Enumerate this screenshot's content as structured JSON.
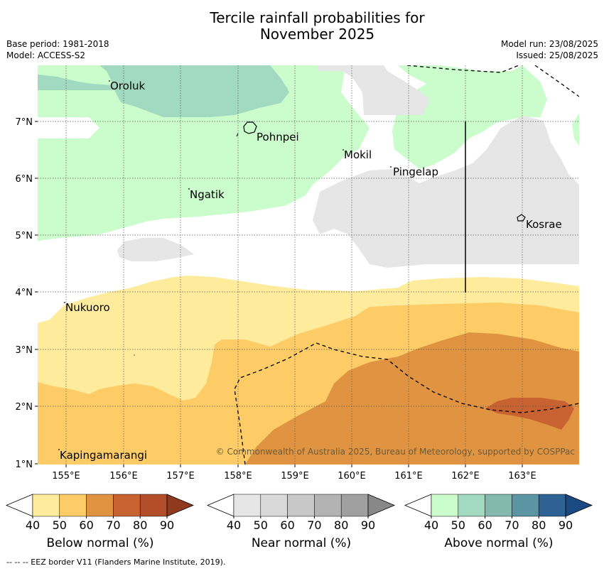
{
  "title_line1": "Tercile rainfall probabilities for",
  "title_line2": "November 2025",
  "base_period": "Base period: 1981-2018",
  "model": "Model: ACCESS-S2",
  "model_run": "Model run: 23/08/2025",
  "issued": "Issued: 25/08/2025",
  "copyright": "© Commonwealth of Australia 2025, Bureau of Meteorology, supported by COSPPac",
  "footer": "--  --  -- EEZ border V11 (Flanders Marine Institute, 2019).",
  "axes": {
    "x_ticks": [
      "155°E",
      "156°E",
      "157°E",
      "158°E",
      "159°E",
      "160°E",
      "161°E",
      "162°E",
      "163°E"
    ],
    "y_ticks": [
      "7°N",
      "6°N",
      "5°N",
      "4°N",
      "3°N",
      "2°N",
      "1°N"
    ]
  },
  "places": [
    {
      "name": "Oroluk"
    },
    {
      "name": "Pohnpei"
    },
    {
      "name": "Mokil"
    },
    {
      "name": "Pingelap"
    },
    {
      "name": "Ngatik"
    },
    {
      "name": "Kosrae"
    },
    {
      "name": "Nukuoro"
    },
    {
      "name": "Kapingamarangi"
    }
  ],
  "colorbars": [
    {
      "label": "Below normal (%)",
      "ticks": [
        "40",
        "50",
        "60",
        "70",
        "80",
        "90"
      ],
      "colors": [
        "#ffeb9c",
        "#fdcc67",
        "#e09442",
        "#c96231",
        "#b24e29",
        "#8f3a1f"
      ]
    },
    {
      "label": "Near normal (%)",
      "ticks": [
        "40",
        "50",
        "60",
        "70",
        "80",
        "90"
      ],
      "colors": [
        "#e6e6e6",
        "#d9d9d9",
        "#c8c8c8",
        "#b3b3b3",
        "#a0a0a0",
        "#888888"
      ]
    },
    {
      "label": "Above normal (%)",
      "ticks": [
        "40",
        "50",
        "60",
        "70",
        "80",
        "90"
      ],
      "colors": [
        "#cbfccb",
        "#a1d9c1",
        "#82b8ae",
        "#5b94a2",
        "#2f6294",
        "#194a82"
      ]
    }
  ],
  "legend_colors": {
    "below_50": "#ffeb9c",
    "below_60": "#fdcc67",
    "below_70": "#e09442",
    "below_80": "#c96231",
    "near_50": "#e6e6e6",
    "above_50": "#cbfccb",
    "above_60": "#a1d9c1"
  }
}
